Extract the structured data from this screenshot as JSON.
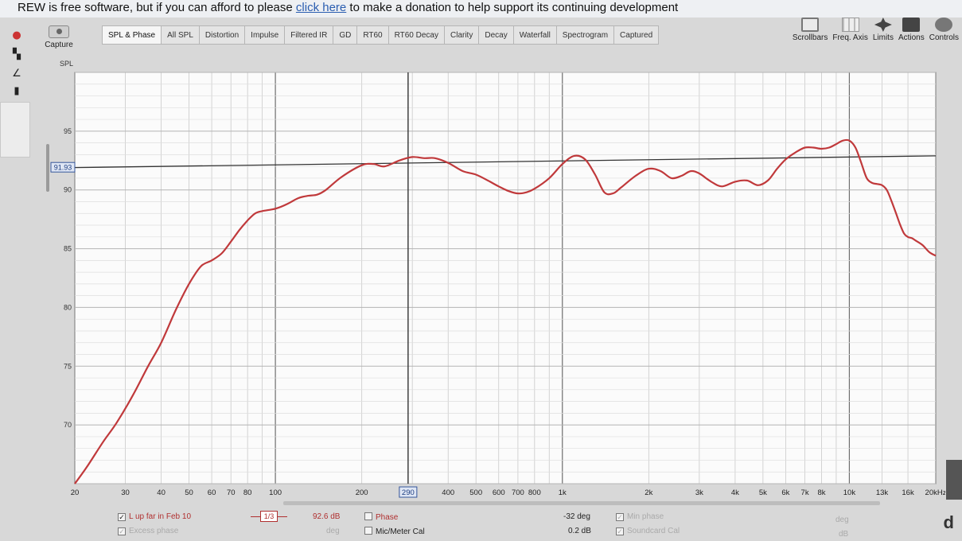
{
  "banner": {
    "text_before": "REW is free software, but if you can afford to please ",
    "link": "click here",
    "text_after": " to make a donation to help support its continuing development"
  },
  "capture": {
    "label": "Capture",
    "icon": "camera-icon"
  },
  "tabs": [
    {
      "label": "SPL & Phase",
      "active": true
    },
    {
      "label": "All SPL"
    },
    {
      "label": "Distortion"
    },
    {
      "label": "Impulse"
    },
    {
      "label": "Filtered IR"
    },
    {
      "label": "GD"
    },
    {
      "label": "RT60"
    },
    {
      "label": "RT60 Decay"
    },
    {
      "label": "Clarity"
    },
    {
      "label": "Decay"
    },
    {
      "label": "Waterfall"
    },
    {
      "label": "Spectrogram"
    },
    {
      "label": "Captured"
    }
  ],
  "toolbar": {
    "scrollbars": "Scrollbars",
    "freq_axis": "Freq. Axis",
    "limits": "Limits",
    "actions": "Actions",
    "controls": "Controls"
  },
  "footer": {
    "trace_name": "L up far in Feb 10",
    "smoothing": "1/3",
    "level": "92.6 dB",
    "level_unit": "deg",
    "excess_phase": "Excess phase",
    "phase": "Phase",
    "mic_cal": "Mic/Meter Cal",
    "phase_value": "-32 deg",
    "cal_value": "0.2 dB",
    "min_phase": "Min phase",
    "soundcard_cal": "Soundcard Cal",
    "right_unit1": "deg",
    "right_unit2": "dB"
  },
  "corner_letter": "d",
  "chart_data": {
    "type": "line",
    "ylabel": "SPL",
    "xscale": "log",
    "xlim": [
      20,
      20000
    ],
    "ylim": [
      65,
      100
    ],
    "y_ticks": [
      70,
      75,
      80,
      85,
      90,
      95
    ],
    "x_ticks": [
      {
        "v": 20,
        "l": "20"
      },
      {
        "v": 30,
        "l": "30"
      },
      {
        "v": 40,
        "l": "40"
      },
      {
        "v": 50,
        "l": "50"
      },
      {
        "v": 60,
        "l": "60"
      },
      {
        "v": 70,
        "l": "70"
      },
      {
        "v": 80,
        "l": "80"
      },
      {
        "v": 100,
        "l": "100"
      },
      {
        "v": 200,
        "l": "200"
      },
      {
        "v": 400,
        "l": "400"
      },
      {
        "v": 500,
        "l": "500"
      },
      {
        "v": 600,
        "l": "600"
      },
      {
        "v": 700,
        "l": "700"
      },
      {
        "v": 800,
        "l": "800"
      },
      {
        "v": 1000,
        "l": "1k"
      },
      {
        "v": 2000,
        "l": "2k"
      },
      {
        "v": 3000,
        "l": "3k"
      },
      {
        "v": 4000,
        "l": "4k"
      },
      {
        "v": 5000,
        "l": "5k"
      },
      {
        "v": 6000,
        "l": "6k"
      },
      {
        "v": 7000,
        "l": "7k"
      },
      {
        "v": 8000,
        "l": "8k"
      },
      {
        "v": 10000,
        "l": "10k"
      },
      {
        "v": 13000,
        "l": "13k"
      },
      {
        "v": 16000,
        "l": "16k"
      },
      {
        "v": 20000,
        "l": "20kHz"
      }
    ],
    "cursor": {
      "x": 290,
      "y": 91.93,
      "x_label": "290",
      "y_label": "91.93"
    },
    "reference_line": {
      "from": [
        20,
        91.9
      ],
      "to": [
        20000,
        92.9
      ]
    },
    "series": [
      {
        "color": "#c0393b",
        "points": [
          [
            20,
            65.0
          ],
          [
            22,
            66.4
          ],
          [
            25,
            68.5
          ],
          [
            28,
            70.2
          ],
          [
            32,
            72.6
          ],
          [
            36,
            75.0
          ],
          [
            40,
            77.0
          ],
          [
            45,
            79.8
          ],
          [
            50,
            82.0
          ],
          [
            55,
            83.5
          ],
          [
            60,
            84.0
          ],
          [
            65,
            84.6
          ],
          [
            70,
            85.6
          ],
          [
            75,
            86.6
          ],
          [
            80,
            87.4
          ],
          [
            85,
            88.0
          ],
          [
            90,
            88.2
          ],
          [
            100,
            88.4
          ],
          [
            110,
            88.8
          ],
          [
            120,
            89.3
          ],
          [
            130,
            89.5
          ],
          [
            140,
            89.6
          ],
          [
            150,
            90.0
          ],
          [
            170,
            91.1
          ],
          [
            200,
            92.1
          ],
          [
            220,
            92.2
          ],
          [
            240,
            92.0
          ],
          [
            270,
            92.5
          ],
          [
            300,
            92.8
          ],
          [
            330,
            92.7
          ],
          [
            360,
            92.7
          ],
          [
            400,
            92.3
          ],
          [
            450,
            91.6
          ],
          [
            500,
            91.3
          ],
          [
            550,
            90.8
          ],
          [
            600,
            90.3
          ],
          [
            650,
            89.9
          ],
          [
            700,
            89.7
          ],
          [
            750,
            89.8
          ],
          [
            800,
            90.1
          ],
          [
            900,
            91.0
          ],
          [
            1000,
            92.2
          ],
          [
            1100,
            92.9
          ],
          [
            1200,
            92.6
          ],
          [
            1300,
            91.3
          ],
          [
            1400,
            89.8
          ],
          [
            1500,
            89.7
          ],
          [
            1600,
            90.2
          ],
          [
            1800,
            91.2
          ],
          [
            2000,
            91.8
          ],
          [
            2200,
            91.6
          ],
          [
            2400,
            91.0
          ],
          [
            2600,
            91.2
          ],
          [
            2800,
            91.6
          ],
          [
            3000,
            91.4
          ],
          [
            3300,
            90.7
          ],
          [
            3600,
            90.3
          ],
          [
            4000,
            90.7
          ],
          [
            4400,
            90.8
          ],
          [
            4800,
            90.4
          ],
          [
            5200,
            90.8
          ],
          [
            5600,
            91.8
          ],
          [
            6000,
            92.6
          ],
          [
            6500,
            93.2
          ],
          [
            7000,
            93.6
          ],
          [
            7500,
            93.6
          ],
          [
            8000,
            93.5
          ],
          [
            8500,
            93.6
          ],
          [
            9000,
            93.9
          ],
          [
            9500,
            94.2
          ],
          [
            10000,
            94.2
          ],
          [
            10500,
            93.6
          ],
          [
            11000,
            92.3
          ],
          [
            11500,
            91.0
          ],
          [
            12000,
            90.6
          ],
          [
            12500,
            90.5
          ],
          [
            13000,
            90.4
          ],
          [
            13500,
            90.0
          ],
          [
            14000,
            89.1
          ],
          [
            14500,
            88.1
          ],
          [
            15000,
            87.1
          ],
          [
            15500,
            86.3
          ],
          [
            16000,
            86.0
          ],
          [
            16500,
            85.9
          ],
          [
            17000,
            85.7
          ],
          [
            18000,
            85.3
          ],
          [
            19000,
            84.7
          ],
          [
            20000,
            84.4
          ]
        ]
      }
    ]
  }
}
